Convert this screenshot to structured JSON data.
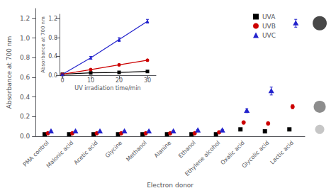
{
  "chart_data": [
    {
      "type": "scatter",
      "xlabel": "Electron donor",
      "ylabel": "Absorbance at 700 nm",
      "categories": [
        "PMA control",
        "Malonic acid",
        "Acetic acid",
        "Glycine",
        "Methanol",
        "Alanine",
        "Ethanol",
        "Ethylene alcohol",
        "Oxalic acid",
        "Glycolic acid",
        "Lactic acid"
      ],
      "series": [
        {
          "name": "UVA",
          "color": "#000000",
          "marker": "square",
          "values": [
            0.02,
            0.02,
            0.02,
            0.02,
            0.02,
            0.02,
            0.02,
            0.02,
            0.07,
            0.05,
            0.07
          ],
          "errors": [
            0.005,
            0.005,
            0.005,
            0.005,
            0.005,
            0.005,
            0.005,
            0.005,
            0.01,
            0.01,
            0.01
          ]
        },
        {
          "name": "UVB",
          "color": "#cc0000",
          "marker": "circle",
          "values": [
            0.03,
            0.03,
            0.03,
            0.03,
            0.03,
            0.03,
            0.03,
            0.04,
            0.14,
            0.13,
            0.3
          ],
          "errors": [
            0.005,
            0.005,
            0.005,
            0.005,
            0.005,
            0.005,
            0.005,
            0.005,
            0.015,
            0.015,
            0.02
          ]
        },
        {
          "name": "UVC",
          "color": "#2222cc",
          "marker": "triangle",
          "values": [
            0.05,
            0.05,
            0.05,
            0.05,
            0.05,
            0.05,
            0.06,
            0.06,
            0.26,
            0.46,
            1.15
          ],
          "errors": [
            0.008,
            0.008,
            0.008,
            0.008,
            0.008,
            0.008,
            0.008,
            0.008,
            0.02,
            0.04,
            0.04
          ]
        }
      ],
      "ylim": [
        0.0,
        1.3
      ],
      "yticks": [
        {
          "value": 0.0,
          "label": "0.0"
        },
        0.2,
        0.4,
        0.6,
        0.8,
        {
          "value": 1.0,
          "label": "1.0"
        },
        1.2
      ],
      "side_markers": {
        "values": [
          1.15,
          0.3,
          0.07
        ],
        "colors": [
          "#1a1a1a",
          "#707070",
          "#b8b8b8"
        ]
      },
      "grid": false,
      "legend": "upper right"
    },
    {
      "type": "line",
      "xlabel": "UV irradiation time/min",
      "ylabel": "Absorbance at 700 nm",
      "x": [
        0,
        10,
        20,
        30
      ],
      "series": [
        {
          "name": "UVA",
          "color": "#000000",
          "marker": "square",
          "values": [
            0.02,
            0.05,
            0.06,
            0.08
          ],
          "errors": [
            0.005,
            0.01,
            0.01,
            0.01
          ]
        },
        {
          "name": "UVB",
          "color": "#cc0000",
          "marker": "circle",
          "values": [
            0.02,
            0.12,
            0.22,
            0.32
          ],
          "errors": [
            0.005,
            0.015,
            0.02,
            0.02
          ]
        },
        {
          "name": "UVC",
          "color": "#2222cc",
          "marker": "triangle",
          "values": [
            0.02,
            0.37,
            0.76,
            1.15
          ],
          "errors": [
            0.005,
            0.03,
            0.04,
            0.04
          ]
        }
      ],
      "xlim": [
        -1,
        33
      ],
      "xticks": [
        0,
        10,
        20,
        30
      ],
      "ylim": [
        0,
        1.3
      ],
      "yticks": [
        {
          "value": 0.0,
          "label": "0.0"
        },
        0.4,
        0.8,
        1.2
      ],
      "grid": false
    }
  ]
}
